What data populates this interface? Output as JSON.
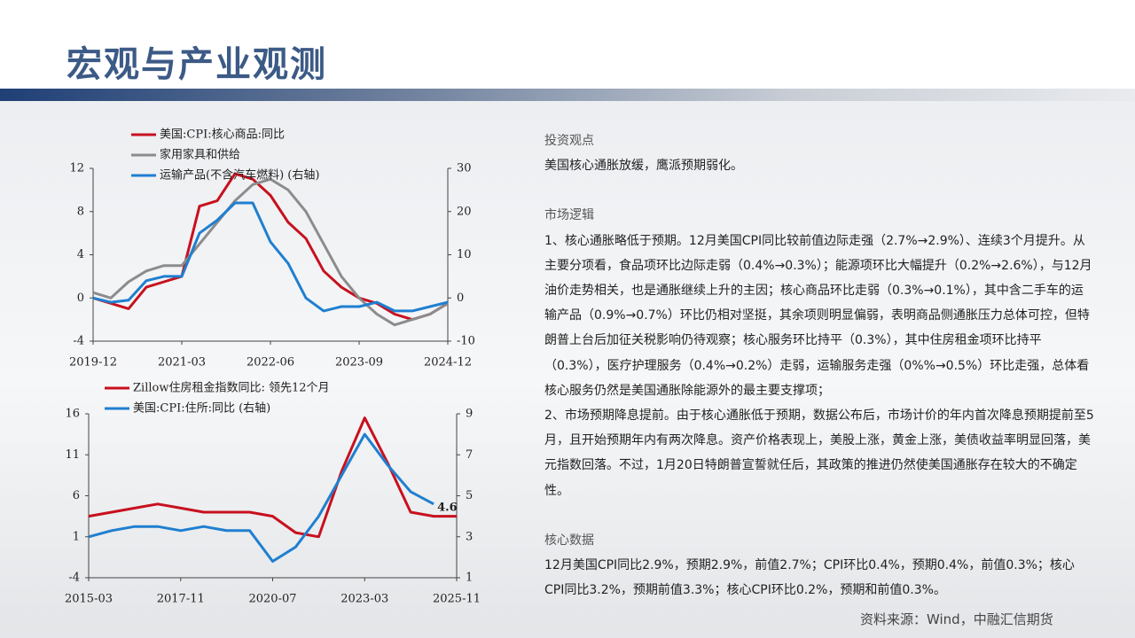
{
  "header": {
    "title": "宏观与产业观测"
  },
  "chart_data": [
    {
      "type": "line",
      "x": [
        "2019-12",
        "2020-03",
        "2020-06",
        "2020-09",
        "2020-12",
        "2021-03",
        "2021-06",
        "2021-09",
        "2021-12",
        "2022-03",
        "2022-06",
        "2022-09",
        "2022-12",
        "2023-03",
        "2023-06",
        "2023-09",
        "2023-12",
        "2024-03",
        "2024-06",
        "2024-09",
        "2024-12"
      ],
      "xticks": [
        "2019-12",
        "2021-03",
        "2022-06",
        "2023-09",
        "2024-12"
      ],
      "ylim": [
        -4,
        12
      ],
      "yticks": [
        -4,
        0,
        4,
        8,
        12
      ],
      "y2lim": [
        -10,
        30
      ],
      "y2ticks": [
        -10,
        0,
        10,
        20,
        30
      ],
      "series": [
        {
          "name": "美国:CPI:核心商品:同比",
          "color": "#c8101e",
          "values": [
            0,
            -0.5,
            -1,
            1,
            1.5,
            2,
            8.5,
            9,
            11.5,
            11,
            9.5,
            7,
            5.5,
            2.5,
            1,
            0,
            -0.5,
            -1.5,
            -2,
            -1.5,
            -0.5
          ]
        },
        {
          "name": "家用家具和供给",
          "color": "#8c8c8c",
          "values": [
            0.5,
            0,
            1.5,
            2.5,
            3,
            3,
            5,
            7,
            9,
            10.5,
            11,
            10,
            8,
            5,
            2,
            0,
            -1.5,
            -2.5,
            -2,
            -1.5,
            -0.5
          ]
        },
        {
          "name": "运输产品(不含汽车燃料) (右轴)",
          "color": "#1f7fd0",
          "axis": "y2",
          "values": [
            0,
            -1,
            -0.5,
            4,
            5,
            5,
            15,
            18,
            22,
            22,
            13,
            8,
            0,
            -3,
            -2,
            -2,
            -1,
            -3,
            -3,
            -2,
            -1
          ]
        }
      ]
    },
    {
      "type": "line",
      "x": [
        "2015-03",
        "2015-11",
        "2016-07",
        "2017-03",
        "2017-11",
        "2018-07",
        "2019-03",
        "2019-11",
        "2020-07",
        "2021-03",
        "2021-11",
        "2022-07",
        "2023-03",
        "2023-11",
        "2024-07",
        "2025-03",
        "2025-11"
      ],
      "xticks": [
        "2015-03",
        "2017-11",
        "2020-07",
        "2023-03",
        "2025-11"
      ],
      "ylim": [
        -4,
        16
      ],
      "yticks": [
        -4,
        1,
        6,
        11,
        16
      ],
      "y2lim": [
        1,
        9
      ],
      "y2ticks": [
        1,
        3,
        5,
        7,
        9
      ],
      "series": [
        {
          "name": "Zillow住房租金指数同比: 领先12个月",
          "color": "#c8101e",
          "values": [
            3.5,
            4,
            4.5,
            5,
            4.5,
            4,
            4,
            4,
            3.5,
            1.5,
            1,
            9,
            15.5,
            10,
            4,
            3.5,
            3.5
          ]
        },
        {
          "name": "美国:CPI:住所:同比 (右轴)",
          "color": "#1f7fd0",
          "axis": "y2",
          "values": [
            3,
            3.3,
            3.5,
            3.5,
            3.3,
            3.5,
            3.3,
            3.3,
            1.8,
            2.5,
            4,
            6,
            8,
            6.5,
            5.2,
            4.6,
            null
          ],
          "value_labels": [
            null,
            null,
            null,
            null,
            null,
            null,
            null,
            null,
            null,
            null,
            null,
            null,
            null,
            null,
            null,
            "4.6",
            null
          ]
        }
      ]
    }
  ],
  "text_panel": [
    {
      "heading": "投资观点",
      "body": "美国核心通胀放缓，鹰派预期弱化。"
    },
    {
      "heading": "市场逻辑",
      "body": "1、核心通胀略低于预期。12月美国CPI同比较前值边际走强（2.7%→2.9%）、连续3个月提升。从主要分项看，食品项环比边际走弱（0.4%→0.3%）；能源项环比大幅提升（0.2%→2.6%），与12月油价走势相关，也是通胀继续上升的主因；核心商品环比走弱（0.3%→0.1%），其中含二手车的运输产品（0.9%→0.7%）环比仍相对坚挺，其余项则明显偏弱，表明商品侧通胀压力总体可控，但特朗普上台后加征关税影响仍待观察；核心服务环比持平（0.3%），其中住房租金项环比持平（0.3%），医疗护理服务（0.4%→0.2%）走弱，运输服务走强（0%%→0.5%）环比走强，总体看核心服务仍然是美国通胀除能源外的最主要支撑项；",
      "body2": "2、市场预期降息提前。由于核心通胀低于预期，数据公布后，市场计价的年内首次降息预期提前至5月，且开始预期年内有两次降息。资产价格表现上，美股上涨，黄金上涨，美债收益率明显回落，美元指数回落。不过，1月20日特朗普宣誓就任后，其政策的推进仍然使美国通胀存在较大的不确定性。"
    },
    {
      "heading": "核心数据",
      "body": "12月美国CPI同比2.9%，预期2.9%，前值2.7%；CPI环比0.4%，预期0.4%，前值0.3%；核心CPI同比3.2%，预期前值3.3%；核心CPI环比0.2%，预期和前值0.3%。"
    }
  ],
  "footer": "资料来源：Wind，中融汇信期货"
}
